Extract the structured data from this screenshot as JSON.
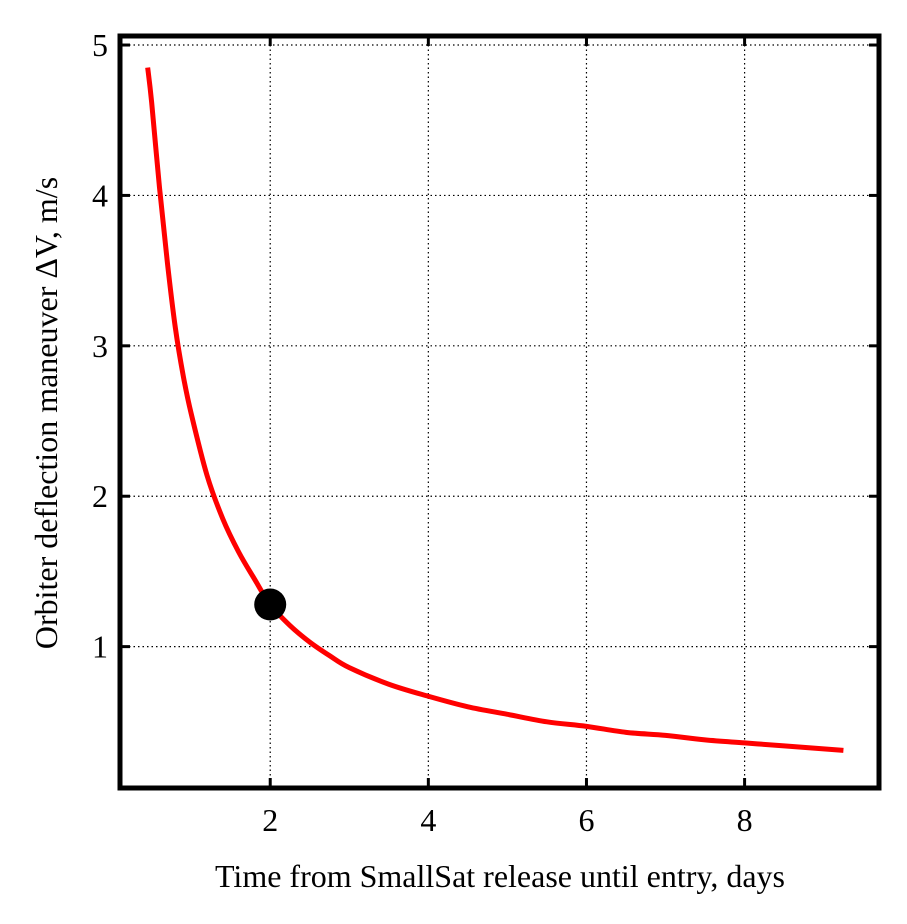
{
  "chart_data": {
    "type": "line",
    "title": "",
    "xlabel": "Time from SmallSat release until entry, days",
    "ylabel": "Orbiter deflection maneuver ΔV, m/s",
    "xlim": [
      0.1,
      9.7
    ],
    "ylim": [
      0.06,
      5.06
    ],
    "xticks": [
      2,
      4,
      6,
      8
    ],
    "yticks": [
      1,
      2,
      3,
      4,
      5
    ],
    "grid": true,
    "legend": "none",
    "colors": {
      "curve": "#ff0000",
      "marker": "#000000",
      "frame": "#000000"
    },
    "series": [
      {
        "values": [
          [
            0.45,
            4.85
          ],
          [
            0.5,
            4.62
          ],
          [
            0.6,
            4.05
          ],
          [
            0.7,
            3.55
          ],
          [
            0.8,
            3.12
          ],
          [
            0.9,
            2.8
          ],
          [
            1.0,
            2.55
          ],
          [
            1.2,
            2.14
          ],
          [
            1.4,
            1.85
          ],
          [
            1.6,
            1.63
          ],
          [
            1.8,
            1.45
          ],
          [
            2.0,
            1.28
          ],
          [
            2.25,
            1.14
          ],
          [
            2.5,
            1.03
          ],
          [
            2.75,
            0.94
          ],
          [
            3.0,
            0.86
          ],
          [
            3.5,
            0.75
          ],
          [
            4.0,
            0.67
          ],
          [
            4.5,
            0.6
          ],
          [
            5.0,
            0.55
          ],
          [
            5.5,
            0.5
          ],
          [
            6.0,
            0.47
          ],
          [
            6.5,
            0.43
          ],
          [
            7.0,
            0.41
          ],
          [
            7.5,
            0.38
          ],
          [
            8.0,
            0.36
          ],
          [
            8.5,
            0.34
          ],
          [
            9.25,
            0.31
          ]
        ]
      }
    ],
    "highlight_point": {
      "x": 2.0,
      "y": 1.28
    }
  }
}
